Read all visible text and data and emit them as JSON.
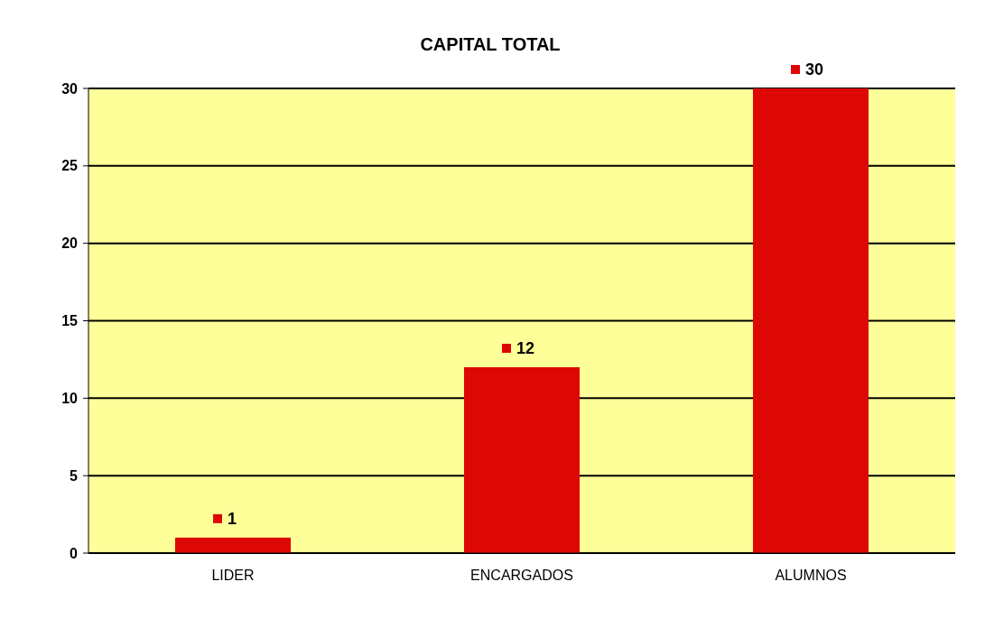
{
  "chart_data": {
    "type": "bar",
    "title": "CAPITAL TOTAL",
    "categories": [
      "LIDER",
      "ENCARGADOS",
      "ALUMNOS"
    ],
    "values": [
      1,
      12,
      30
    ],
    "color": "#dd0806",
    "ylim": [
      0,
      30
    ],
    "yticks": [
      0,
      5,
      10,
      15,
      20,
      25,
      30
    ],
    "grid": "y",
    "data_labels": true
  }
}
